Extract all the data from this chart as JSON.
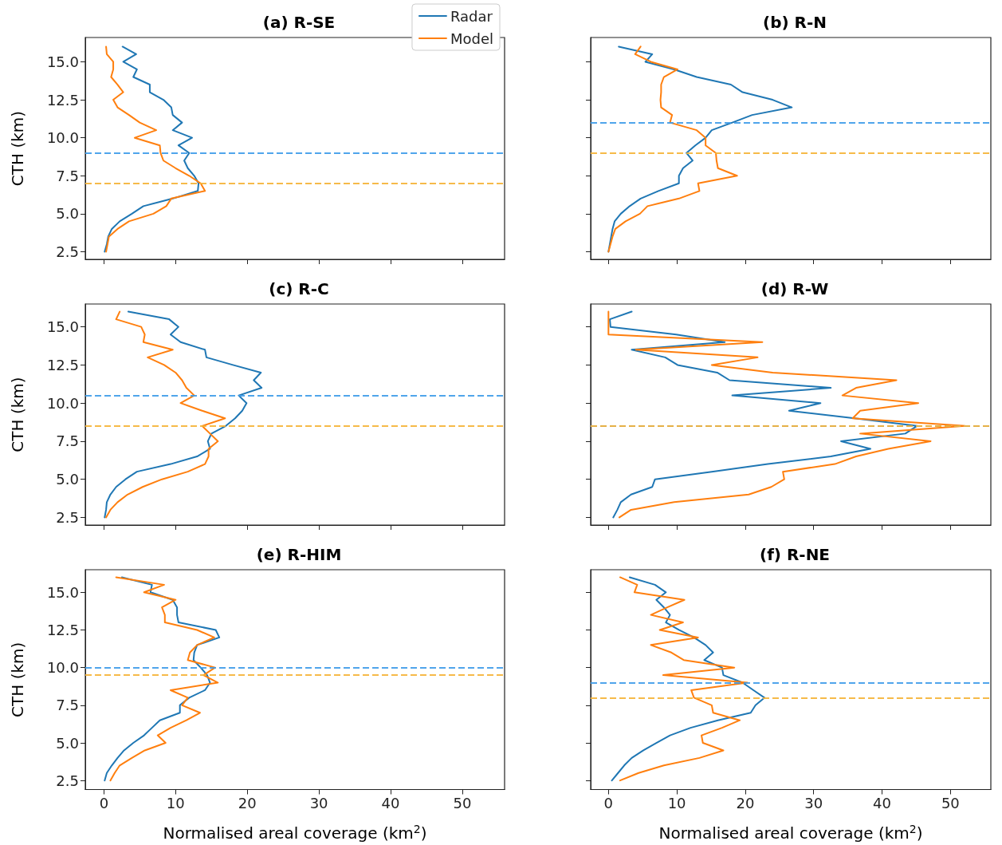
{
  "chart_data": [
    {
      "type": "line",
      "title": "(a) R-SE",
      "ylabel": "CTH (km)",
      "xlim": [
        -2.6,
        55.9
      ],
      "ylim": [
        2.0,
        16.6
      ],
      "xticks": [
        0,
        10,
        20,
        30,
        40,
        50
      ],
      "yticks": [
        2.5,
        {
          "value": 5,
          "label": "5.0"
        },
        7.5,
        {
          "value": 10,
          "label": "10.0"
        },
        12.5,
        {
          "value": 15,
          "label": "15.0"
        }
      ],
      "tick_labels": "y",
      "legend": "top right",
      "line_style": "solid",
      "series": [
        {
          "name": "Radar",
          "color": "#1f77b4",
          "x": [
            2.6,
            4.5,
            2.7,
            4.6,
            4.1,
            6.4,
            6.4,
            8.3,
            9.4,
            9.6,
            10.9,
            9.6,
            12.3,
            10.4,
            11.9,
            11.2,
            11.7,
            12.6,
            13.2,
            13.1,
            9.6,
            5.5,
            3.9,
            2.2,
            1.1,
            0.6,
            0.4,
            0.1
          ],
          "values": [
            16,
            15.5,
            15,
            14.5,
            14,
            13.5,
            13,
            12.5,
            12,
            11.5,
            11,
            10.5,
            10,
            9.5,
            9,
            8.5,
            8,
            7.5,
            7,
            6.5,
            6,
            5.5,
            5,
            4.5,
            4,
            3.5,
            3,
            2.5
          ]
        },
        {
          "name": "Model",
          "color": "#ff7f0e",
          "x": [
            0.3,
            0.4,
            1.3,
            1.3,
            1.0,
            1.9,
            2.7,
            1.3,
            1.9,
            3.5,
            5.0,
            7.3,
            4.3,
            7.8,
            7.9,
            8.3,
            10.0,
            11.9,
            13.5,
            14.1,
            9.4,
            8.7,
            6.9,
            3.5,
            1.9,
            0.7,
            0.5,
            0.3
          ],
          "values": [
            16,
            15.5,
            15,
            14.5,
            14,
            13.5,
            13,
            12.5,
            12,
            11.5,
            11,
            10.5,
            10,
            9.5,
            9,
            8.5,
            8,
            7.5,
            7,
            6.5,
            6,
            5.5,
            5,
            4.5,
            4,
            3.5,
            3,
            2.5
          ]
        }
      ],
      "ref_lines": [
        {
          "axis": "y",
          "value": 9,
          "color": "#3d9be9",
          "line_style": "dashed"
        },
        {
          "axis": "y",
          "value": 7,
          "color": "#f5b335",
          "line_style": "dashed"
        }
      ]
    },
    {
      "type": "line",
      "title": "(b) R-N",
      "xlim": [
        -2.6,
        55.9
      ],
      "ylim": [
        2.0,
        16.6
      ],
      "xticks": [
        0,
        10,
        20,
        30,
        40,
        50
      ],
      "yticks": [
        2.5,
        5,
        7.5,
        10,
        12.5,
        15
      ],
      "tick_labels": false,
      "line_style": "solid",
      "series": [
        {
          "color": "#1f77b4",
          "x": [
            1.5,
            6.4,
            5.4,
            9.6,
            12.9,
            17.9,
            19.6,
            24.0,
            26.8,
            21.0,
            18.1,
            15.1,
            14.2,
            12.7,
            11.4,
            12.3,
            10.9,
            10.3,
            10.3,
            7.3,
            4.7,
            3.1,
            1.8,
            0.9,
            0.6,
            0.4,
            0.2,
            0.0
          ],
          "values": [
            16,
            15.5,
            15,
            14.5,
            14,
            13.5,
            13,
            12.5,
            12,
            11.5,
            11,
            10.5,
            10,
            9.5,
            9,
            8.5,
            8,
            7.5,
            7,
            6.5,
            6,
            5.5,
            5,
            4.5,
            4,
            3.5,
            3,
            2.5
          ]
        },
        {
          "color": "#ff7f0e",
          "x": [
            4.7,
            3.9,
            6.2,
            10.1,
            8.1,
            7.7,
            7.7,
            7.6,
            7.7,
            9.3,
            9.0,
            12.9,
            14.2,
            14.2,
            15.7,
            15.8,
            16.0,
            18.8,
            13.1,
            13.3,
            10.3,
            5.7,
            4.6,
            2.5,
            1.0,
            0.6,
            0.3,
            0.0
          ],
          "values": [
            16,
            15.5,
            15,
            14.5,
            14,
            13.5,
            13,
            12.5,
            12,
            11.5,
            11,
            10.5,
            10,
            9.5,
            9,
            8.5,
            8,
            7.5,
            7,
            6.5,
            6,
            5.5,
            5,
            4.5,
            4,
            3.5,
            3,
            2.5
          ]
        }
      ],
      "ref_lines": [
        {
          "axis": "y",
          "value": 11,
          "color": "#3d9be9",
          "line_style": "dashed"
        },
        {
          "axis": "y",
          "value": 9,
          "color": "#f5b335",
          "line_style": "dashed"
        }
      ]
    },
    {
      "type": "line",
      "title": "(c) R-C",
      "ylabel": "CTH (km)",
      "xlim": [
        -2.6,
        55.9
      ],
      "ylim": [
        2.0,
        16.5
      ],
      "xticks": [
        0,
        10,
        20,
        30,
        40,
        50
      ],
      "yticks": [
        2.5,
        {
          "value": 5,
          "label": "5.0"
        },
        7.5,
        {
          "value": 10,
          "label": "10.0"
        },
        12.5,
        {
          "value": 15,
          "label": "15.0"
        }
      ],
      "tick_labels": "y",
      "line_style": "solid",
      "series": [
        {
          "color": "#1f77b4",
          "x": [
            3.4,
            9.1,
            10.4,
            9.3,
            10.7,
            14.1,
            14.3,
            18.0,
            21.9,
            20.9,
            22.0,
            18.8,
            19.9,
            19.3,
            18.3,
            17.0,
            15.0,
            14.5,
            14.8,
            13.0,
            9.3,
            4.6,
            3.0,
            1.7,
            0.9,
            0.4,
            0.3,
            0.1
          ],
          "values": [
            16,
            15.5,
            15,
            14.5,
            14,
            13.5,
            13,
            12.5,
            12,
            11.5,
            11,
            10.5,
            10,
            9.5,
            9,
            8.5,
            8,
            7.5,
            7,
            6.5,
            6,
            5.5,
            5,
            4.5,
            4,
            3.5,
            3,
            2.5
          ]
        },
        {
          "color": "#ff7f0e",
          "x": [
            2.2,
            1.7,
            5.2,
            5.7,
            5.5,
            9.6,
            6.1,
            8.4,
            10.0,
            10.9,
            11.5,
            12.6,
            10.7,
            13.7,
            16.9,
            13.7,
            14.8,
            15.9,
            14.6,
            14.6,
            14.1,
            11.7,
            8.1,
            5.4,
            3.3,
            1.9,
            0.9,
            0.3
          ],
          "values": [
            16,
            15.5,
            15,
            14.5,
            14,
            13.5,
            13,
            12.5,
            12,
            11.5,
            11,
            10.5,
            10,
            9.5,
            9,
            8.5,
            8,
            7.5,
            7,
            6.5,
            6,
            5.5,
            5,
            4.5,
            4,
            3.5,
            3,
            2.5
          ]
        }
      ],
      "ref_lines": [
        {
          "axis": "y",
          "value": 10.5,
          "color": "#3d9be9",
          "line_style": "dashed"
        },
        {
          "axis": "y",
          "value": 8.5,
          "color": "#f5b335",
          "line_style": "dashed"
        }
      ]
    },
    {
      "type": "line",
      "title": "(d) R-W",
      "xlim": [
        -2.6,
        55.9
      ],
      "ylim": [
        2.0,
        16.5
      ],
      "xticks": [
        0,
        10,
        20,
        30,
        40,
        50
      ],
      "yticks": [
        2.5,
        5,
        7.5,
        10,
        12.5,
        15
      ],
      "tick_labels": false,
      "line_style": "solid",
      "series": [
        {
          "color": "#1f77b4",
          "x": [
            3.4,
            0.2,
            0.3,
            9.9,
            17.0,
            3.4,
            8.3,
            10.1,
            15.9,
            17.7,
            32.5,
            18.1,
            31.0,
            26.4,
            36.0,
            45.1,
            43.4,
            34.0,
            38.3,
            32.5,
            23.3,
            15.1,
            6.8,
            6.4,
            3.3,
            1.8,
            1.3,
            0.7
          ],
          "values": [
            16,
            15.5,
            15,
            14.5,
            14,
            13.5,
            13,
            12.5,
            12,
            11.5,
            11,
            10.5,
            10,
            9.5,
            9,
            8.5,
            8,
            7.5,
            7,
            6.5,
            6,
            5.5,
            5,
            4.5,
            4,
            3.5,
            3,
            2.5
          ]
        },
        {
          "color": "#ff7f0e",
          "x": [
            0.0,
            0.0,
            0.0,
            0.0,
            22.5,
            4.0,
            21.8,
            15.1,
            24.0,
            42.1,
            36.2,
            34.2,
            45.3,
            36.8,
            35.7,
            52.1,
            36.8,
            47.1,
            40.9,
            36.2,
            33.1,
            25.5,
            25.7,
            23.8,
            20.5,
            9.6,
            3.3,
            1.6
          ],
          "values": [
            16,
            15.5,
            15,
            14.5,
            14,
            13.5,
            13,
            12.5,
            12,
            11.5,
            11,
            10.5,
            10,
            9.5,
            9,
            8.5,
            8,
            7.5,
            7,
            6.5,
            6,
            5.5,
            5,
            4.5,
            4,
            3.5,
            3,
            2.5
          ]
        }
      ],
      "ref_lines": [
        {
          "axis": "y",
          "value": 8.5,
          "color": "#3d9be9",
          "line_style": "dashed"
        },
        {
          "axis": "y",
          "value": 8.5,
          "color": "#f5b335",
          "line_style": "dashed"
        }
      ]
    },
    {
      "type": "line",
      "title": "(e) R-HIM",
      "xlabel": "Normalised areal coverage (km$^{2}$)",
      "ylabel": "CTH (km)",
      "xlim": [
        -2.6,
        55.9
      ],
      "ylim": [
        1.9,
        16.5
      ],
      "xticks": [
        0,
        10,
        20,
        30,
        40,
        50
      ],
      "yticks": [
        2.5,
        {
          "value": 5,
          "label": "5.0"
        },
        7.5,
        {
          "value": 10,
          "label": "10.0"
        },
        12.5,
        {
          "value": 15,
          "label": "15.0"
        }
      ],
      "line_style": "solid",
      "series": [
        {
          "color": "#1f77b4",
          "x": [
            2.5,
            6.7,
            6.5,
            9.6,
            10.2,
            10.2,
            10.4,
            15.6,
            16.1,
            13.0,
            12.6,
            12.5,
            13.5,
            14.4,
            14.8,
            14.1,
            11.9,
            10.6,
            10.6,
            7.8,
            6.7,
            5.6,
            4.1,
            2.8,
            1.9,
            1.1,
            0.4,
            0.1
          ],
          "values": [
            16,
            15.5,
            15,
            14.5,
            14,
            13.5,
            13,
            12.5,
            12,
            11.5,
            11,
            10.5,
            10,
            9.5,
            9,
            8.5,
            8,
            7.5,
            7,
            6.5,
            6,
            5.5,
            5,
            4.5,
            4,
            3.5,
            3,
            2.5
          ]
        },
        {
          "color": "#ff7f0e",
          "x": [
            1.7,
            8.4,
            5.6,
            10.0,
            8.1,
            8.5,
            8.5,
            13.0,
            15.4,
            13.0,
            12.0,
            11.7,
            15.5,
            13.9,
            15.9,
            9.3,
            11.7,
            10.9,
            13.4,
            11.5,
            9.3,
            7.5,
            8.6,
            5.7,
            3.9,
            2.2,
            1.5,
            0.9
          ],
          "values": [
            16,
            15.5,
            15,
            14.5,
            14,
            13.5,
            13,
            12.5,
            12,
            11.5,
            11,
            10.5,
            10,
            9.5,
            9,
            8.5,
            8,
            7.5,
            7,
            6.5,
            6,
            5.5,
            5,
            4.5,
            4,
            3.5,
            3,
            2.5
          ]
        }
      ],
      "ref_lines": [
        {
          "axis": "y",
          "value": 10,
          "color": "#3d9be9",
          "line_style": "dashed"
        },
        {
          "axis": "y",
          "value": 9.5,
          "color": "#f5b335",
          "line_style": "dashed"
        }
      ]
    },
    {
      "type": "line",
      "title": "(f) R-NE",
      "xlabel": "Normalised areal coverage (km$^{2}$)",
      "xlim": [
        -2.6,
        55.9
      ],
      "ylim": [
        1.9,
        16.5
      ],
      "xticks": [
        0,
        10,
        20,
        30,
        40,
        50
      ],
      "yticks": [
        2.5,
        5,
        7.5,
        10,
        12.5,
        15
      ],
      "tick_labels": "x",
      "line_style": "solid",
      "series": [
        {
          "color": "#1f77b4",
          "x": [
            3.1,
            6.8,
            8.4,
            7.0,
            8.1,
            9.0,
            8.4,
            10.3,
            12.5,
            14.2,
            15.3,
            14.0,
            16.6,
            16.8,
            19.6,
            21.2,
            22.8,
            21.5,
            20.8,
            16.0,
            12.0,
            9.0,
            7.0,
            5.1,
            3.4,
            2.3,
            1.4,
            0.5
          ],
          "values": [
            16,
            15.5,
            15,
            14.5,
            14,
            13.5,
            13,
            12.5,
            12,
            11.5,
            11,
            10.5,
            10,
            9.5,
            9,
            8.5,
            8,
            7.5,
            7,
            6.5,
            6,
            5.5,
            5,
            4.5,
            4,
            3.5,
            3,
            2.5
          ]
        },
        {
          "color": "#ff7f0e",
          "x": [
            1.7,
            4.2,
            3.8,
            11.1,
            8.6,
            6.2,
            10.9,
            7.5,
            13.1,
            6.2,
            9.2,
            11.0,
            18.4,
            8.0,
            20.3,
            12.1,
            12.5,
            15.1,
            15.3,
            19.2,
            16.6,
            13.6,
            13.8,
            16.8,
            13.3,
            8.1,
            4.4,
            1.7
          ],
          "values": [
            16,
            15.5,
            15,
            14.5,
            14,
            13.5,
            13,
            12.5,
            12,
            11.5,
            11,
            10.5,
            10,
            9.5,
            9,
            8.5,
            8,
            7.5,
            7,
            6.5,
            6,
            5.5,
            5,
            4.5,
            4,
            3.5,
            3,
            2.5
          ]
        }
      ],
      "ref_lines": [
        {
          "axis": "y",
          "value": 9,
          "color": "#3d9be9",
          "line_style": "dashed"
        },
        {
          "axis": "y",
          "value": 8,
          "color": "#f5b335",
          "line_style": "dashed"
        }
      ]
    }
  ]
}
